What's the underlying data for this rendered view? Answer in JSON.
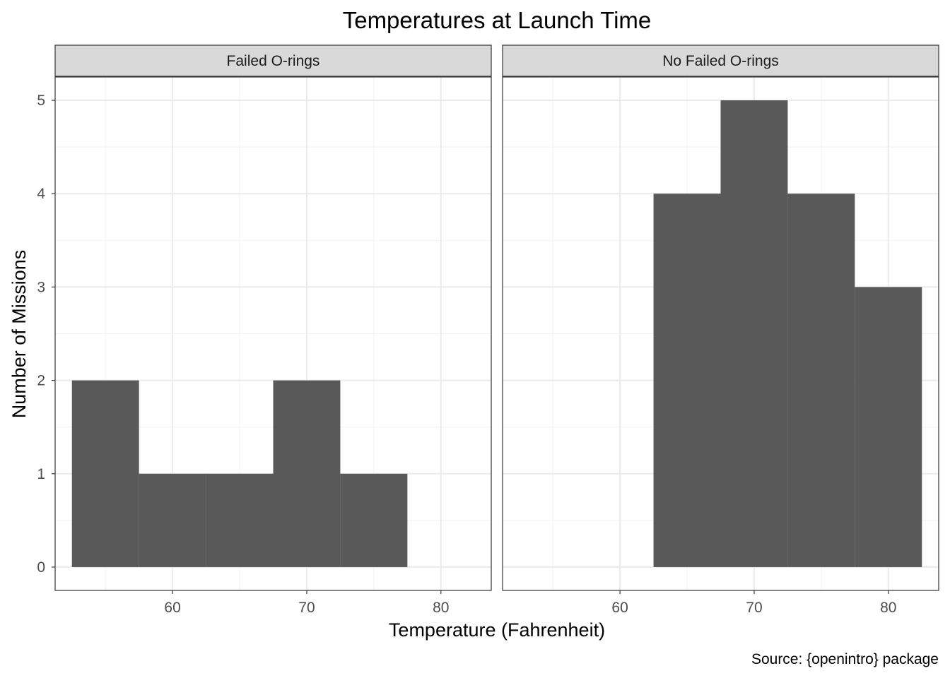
{
  "chart_data": {
    "type": "bar",
    "subtype": "faceted histogram",
    "title": "Temperatures at Launch Time",
    "xlabel": "Temperature (Fahrenheit)",
    "ylabel": "Number of Missions",
    "caption": "Source: {openintro} package",
    "xlim": [
      51.25,
      83.75
    ],
    "ylim": [
      -0.25,
      5.25
    ],
    "x_ticks": [
      60,
      70,
      80
    ],
    "y_ticks": [
      0,
      1,
      2,
      3,
      4,
      5
    ],
    "bin_width": 5,
    "grid": true,
    "panels": [
      {
        "label": "Failed O-rings",
        "bins": [
          {
            "x": 55,
            "count": 2
          },
          {
            "x": 60,
            "count": 1
          },
          {
            "x": 65,
            "count": 1
          },
          {
            "x": 70,
            "count": 2
          },
          {
            "x": 75,
            "count": 1
          }
        ]
      },
      {
        "label": "No Failed O-rings",
        "bins": [
          {
            "x": 65,
            "count": 4
          },
          {
            "x": 70,
            "count": 5
          },
          {
            "x": 75,
            "count": 4
          },
          {
            "x": 80,
            "count": 3
          }
        ]
      }
    ],
    "colors": {
      "bar": "#595959",
      "strip_fill": "#d9d9d9",
      "panel_border": "#333333",
      "grid_major": "#ebebeb",
      "grid_minor": "#f2f2f2"
    }
  }
}
